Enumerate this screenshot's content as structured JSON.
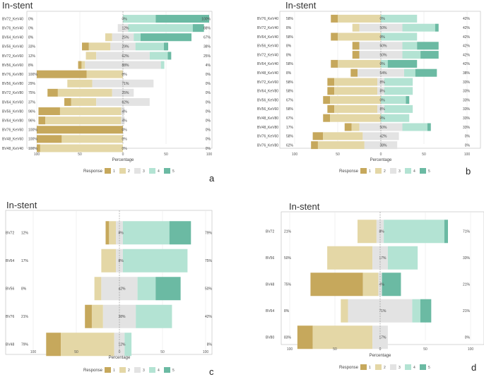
{
  "colors": {
    "r1": "#c6a85c",
    "r2": "#e4d7a6",
    "r3": "#e3e3e3",
    "r4": "#b3e3d3",
    "r5": "#6bbaa3",
    "grid": "#e8e8e8",
    "border": "#bbbbbb"
  },
  "legend_title": "Response",
  "legend_labels": [
    "1",
    "2",
    "3",
    "4",
    "5"
  ],
  "x_axis_label": "Percentage",
  "chart_data": [
    {
      "panel": "a",
      "type": "diverging-stacked-bar",
      "title": "In-stent",
      "xlabel": "Percentage",
      "xlim": [
        -100,
        100
      ],
      "xticks": [
        "100",
        "50",
        "0",
        "50",
        "100"
      ],
      "categories": [
        "BV72_KeV40",
        "BV76_KeV40",
        "BV64_KeV40",
        "BV56_KeV40",
        "BV72_KeV60",
        "BV56_KeV60",
        "BV76_KeV80",
        "BV56_KeV80",
        "BV72_KeV80",
        "BV64_KeV60",
        "BV56_KeV80",
        "BV64_KeV80",
        "BV76_KeV60",
        "BV48_KeV60",
        "BV48_KeV40"
      ],
      "left_pct": [
        "0%",
        "0%",
        "8%",
        "33%",
        "12%",
        "8%",
        "100%",
        "29%",
        "75%",
        "37%",
        "96%",
        "96%",
        "100%",
        "100%",
        "100%"
      ],
      "mid_pct": [
        "0%",
        "12%",
        "25%",
        "29%",
        "62%",
        "88%",
        "0%",
        "71%",
        "25%",
        "62%",
        "4%",
        "4%",
        "0%",
        "0%",
        "0%"
      ],
      "right_pct": [
        "100%",
        "88%",
        "67%",
        "38%",
        "25%",
        "4%",
        "0%",
        "0%",
        "0%",
        "0%",
        "0%",
        "0%",
        "0%",
        "0%",
        "0%"
      ],
      "series": [
        {
          "name": "1",
          "values": [
            0,
            0,
            0,
            8,
            0,
            4,
            58,
            0,
            12,
            8,
            25,
            8,
            100,
            29,
            4
          ]
        },
        {
          "name": "2",
          "values": [
            0,
            0,
            8,
            25,
            12,
            4,
            42,
            29,
            63,
            29,
            71,
            88,
            0,
            71,
            96
          ]
        },
        {
          "name": "3",
          "values": [
            0,
            12,
            25,
            29,
            62,
            88,
            0,
            71,
            25,
            62,
            4,
            4,
            0,
            0,
            0
          ]
        },
        {
          "name": "4",
          "values": [
            38,
            75,
            8,
            33,
            21,
            4,
            0,
            0,
            0,
            0,
            0,
            0,
            0,
            0,
            0
          ]
        },
        {
          "name": "5",
          "values": [
            62,
            13,
            59,
            5,
            4,
            0,
            0,
            0,
            0,
            0,
            0,
            0,
            0,
            0,
            0
          ]
        }
      ]
    },
    {
      "panel": "b",
      "type": "diverging-stacked-bar",
      "title": "In-stent",
      "xlabel": "Percentage",
      "xlim": [
        -100,
        100
      ],
      "xticks": [
        "100",
        "50",
        "0",
        "50",
        "100"
      ],
      "categories": [
        "BV76_KeV40",
        "BV72_KeV40",
        "BV64_KeV40",
        "BV56_KeV40",
        "BV72_KeV40",
        "BV64_KeV40",
        "BV48_KeV40",
        "BV72_KeV60",
        "BV64_KeV80",
        "BV56_KeV80",
        "BV56_KeV60",
        "BV48_KeV80",
        "BV48_KeV80",
        "BV76_KeV60",
        "BV76_KeV80"
      ],
      "left_pct": [
        "58%",
        "8%",
        "58%",
        "8%",
        "8%",
        "58%",
        "8%",
        "58%",
        "58%",
        "67%",
        "58%",
        "67%",
        "17%",
        "58%",
        "62%"
      ],
      "mid_pct": [
        "0%",
        "50%",
        "0%",
        "50%",
        "50%",
        "0%",
        "54%",
        "8%",
        "8%",
        "0%",
        "8%",
        "0%",
        "50%",
        "42%",
        "38%"
      ],
      "right_pct": [
        "42%",
        "42%",
        "42%",
        "42%",
        "42%",
        "42%",
        "38%",
        "33%",
        "33%",
        "33%",
        "33%",
        "33%",
        "33%",
        "0%",
        "0%"
      ],
      "series": [
        {
          "name": "1",
          "values": [
            8,
            0,
            8,
            8,
            8,
            8,
            8,
            8,
            8,
            8,
            8,
            8,
            8,
            12,
            8
          ]
        },
        {
          "name": "2",
          "values": [
            50,
            8,
            50,
            0,
            0,
            50,
            0,
            50,
            50,
            59,
            50,
            59,
            9,
            46,
            54
          ]
        },
        {
          "name": "3",
          "values": [
            0,
            50,
            0,
            50,
            50,
            0,
            54,
            8,
            8,
            0,
            8,
            0,
            50,
            42,
            38
          ]
        },
        {
          "name": "4",
          "values": [
            42,
            38,
            42,
            17,
            21,
            8,
            13,
            33,
            33,
            29,
            33,
            33,
            29,
            0,
            0
          ]
        },
        {
          "name": "5",
          "values": [
            0,
            4,
            0,
            25,
            21,
            34,
            25,
            0,
            0,
            4,
            0,
            0,
            4,
            0,
            0
          ]
        }
      ]
    },
    {
      "panel": "c",
      "type": "diverging-stacked-bar",
      "title": "In-stent",
      "xlabel": "Percentage",
      "xlim": [
        -100,
        100
      ],
      "xticks": [
        "100",
        "50",
        "0",
        "50",
        "100"
      ],
      "categories": [
        "BV72",
        "BV64",
        "BV56",
        "BV76",
        "BV48"
      ],
      "left_pct": [
        "12%",
        "17%",
        "8%",
        "21%",
        "79%"
      ],
      "mid_pct": [
        "8%",
        "8%",
        "42%",
        "38%",
        "12%"
      ],
      "right_pct": [
        "79%",
        "75%",
        "50%",
        "42%",
        "8%"
      ],
      "series": [
        {
          "name": "1",
          "values": [
            4,
            0,
            0,
            8,
            17
          ]
        },
        {
          "name": "2",
          "values": [
            8,
            17,
            8,
            13,
            62
          ]
        },
        {
          "name": "3",
          "values": [
            8,
            8,
            42,
            38,
            12
          ]
        },
        {
          "name": "4",
          "values": [
            54,
            75,
            21,
            42,
            8
          ]
        },
        {
          "name": "5",
          "values": [
            25,
            0,
            29,
            0,
            0
          ]
        }
      ]
    },
    {
      "panel": "d",
      "type": "diverging-stacked-bar",
      "title": "In-stent",
      "xlabel": "Percentage",
      "xlim": [
        -100,
        100
      ],
      "xticks": [
        "100",
        "50",
        "0",
        "50",
        "100"
      ],
      "categories": [
        "BV72",
        "BV56",
        "BV48",
        "BV64",
        "BV80"
      ],
      "left_pct": [
        "21%",
        "50%",
        "75%",
        "8%",
        "83%"
      ],
      "mid_pct": [
        "8%",
        "17%",
        "4%",
        "71%",
        "17%"
      ],
      "right_pct": [
        "71%",
        "33%",
        "21%",
        "21%",
        "0%"
      ],
      "series": [
        {
          "name": "1",
          "values": [
            0,
            0,
            58,
            0,
            17
          ]
        },
        {
          "name": "2",
          "values": [
            21,
            50,
            17,
            8,
            66
          ]
        },
        {
          "name": "3",
          "values": [
            8,
            17,
            4,
            71,
            17
          ]
        },
        {
          "name": "4",
          "values": [
            67,
            33,
            0,
            9,
            0
          ]
        },
        {
          "name": "5",
          "values": [
            4,
            0,
            21,
            12,
            0
          ]
        }
      ]
    }
  ]
}
